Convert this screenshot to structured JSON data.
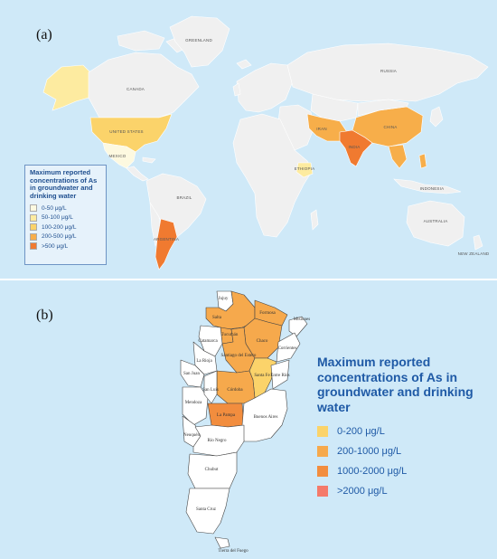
{
  "panel_a": {
    "label": "(a)",
    "country_labels": [
      "GREENLAND",
      "RUSSIA",
      "CANADA",
      "UNITED STATES",
      "MEXICO",
      "BRAZIL",
      "ARGENTINA",
      "CHINA",
      "INDIA",
      "IRAN",
      "ETHIOPIA",
      "INDONESIA",
      "AUSTRALIA",
      "NEW ZEALAND"
    ],
    "legend": {
      "title": "Maximum reported concentrations of As in groundwater and drinking water",
      "items": [
        {
          "label": "0-50 μg/L",
          "color": "#fdf9e0"
        },
        {
          "label": "50-100 μg/L",
          "color": "#fdeba0"
        },
        {
          "label": "100-200 μg/L",
          "color": "#fbd36a"
        },
        {
          "label": "200-500 μg/L",
          "color": "#f7ae4a"
        },
        {
          "label": ">500 μg/L",
          "color": "#f07a30"
        }
      ]
    }
  },
  "panel_b": {
    "label": "(b)",
    "provinces": [
      "Jujuy",
      "Salta",
      "Formosa",
      "Misiones",
      "Chaco",
      "Tucumán",
      "Catamarca",
      "Santiago del Estero",
      "Corrientes",
      "La Rioja",
      "Santa Fe",
      "San Juan",
      "Córdoba",
      "Entre Ríos",
      "Mendoza",
      "San Luis",
      "La Pampa",
      "Buenos Aires",
      "Neuquén",
      "Río Negro",
      "Chubut",
      "Santa Cruz",
      "Tierra del Fuego"
    ],
    "legend": {
      "title": "Maximum reported concentrations of As in groundwater and drinking water",
      "items": [
        {
          "label": "0-200 μg/L",
          "color": "#fbd36a"
        },
        {
          "label": "200-1000 μg/L",
          "color": "#f6a94c"
        },
        {
          "label": "1000-2000 μg/L",
          "color": "#f28d3e"
        },
        {
          "label": ">2000 μg/L",
          "color": "#f47a6a"
        }
      ]
    }
  }
}
